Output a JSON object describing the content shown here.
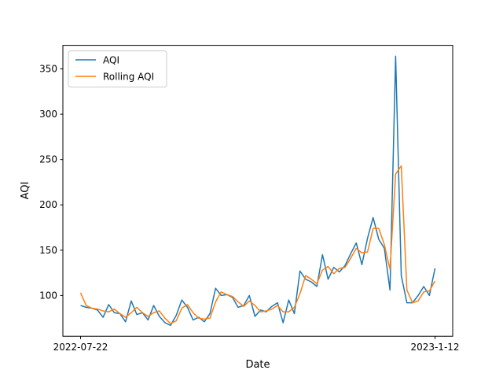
{
  "chart_data": {
    "type": "line",
    "xlabel": "Date",
    "ylabel": "AQI",
    "x_tick_labels": [
      "2022-07-22",
      "2023-1-12"
    ],
    "ylim": [
      55,
      376
    ],
    "y_ticks": [
      100,
      150,
      200,
      250,
      300,
      350
    ],
    "legend_position": "upper-left",
    "grid": false,
    "x_index": [
      0,
      1,
      2,
      3,
      4,
      5,
      6,
      7,
      8,
      9,
      10,
      11,
      12,
      13,
      14,
      15,
      16,
      17,
      18,
      19,
      20,
      21,
      22,
      23,
      24,
      25,
      26,
      27,
      28,
      29,
      30,
      31,
      32,
      33,
      34,
      35,
      36,
      37,
      38,
      39,
      40,
      41,
      42,
      43,
      44,
      45,
      46,
      47,
      48,
      49,
      50,
      51,
      52,
      53,
      54,
      55,
      56,
      57,
      58,
      59,
      60,
      61,
      62,
      63
    ],
    "series": [
      {
        "name": "AQI",
        "color": "#1f77b4",
        "values": [
          89,
          87,
          86,
          84,
          76,
          90,
          81,
          80,
          71,
          94,
          79,
          81,
          73,
          89,
          77,
          70,
          67,
          78,
          95,
          87,
          73,
          76,
          71,
          80,
          108,
          100,
          101,
          98,
          87,
          89,
          100,
          77,
          84,
          82,
          88,
          92,
          70,
          95,
          80,
          127,
          118,
          115,
          110,
          145,
          118,
          131,
          126,
          133,
          146,
          158,
          134,
          163,
          186,
          162,
          152,
          106,
          364,
          122,
          92,
          92,
          100,
          110,
          100,
          130
        ]
      },
      {
        "name": "Rolling AQI",
        "color": "#ff7f0e",
        "values": [
          103,
          89,
          86,
          85,
          83,
          82,
          85,
          80,
          76,
          81,
          87,
          81,
          77,
          81,
          83,
          75,
          69,
          72,
          86,
          90,
          81,
          75,
          74,
          75,
          93,
          104,
          101,
          99,
          93,
          88,
          94,
          89,
          82,
          83,
          85,
          89,
          82,
          82,
          87,
          102,
          122,
          118,
          113,
          128,
          132,
          124,
          130,
          131,
          141,
          152,
          147,
          148,
          174,
          174,
          156,
          129,
          234,
          243,
          106,
          92,
          94,
          104,
          105,
          116
        ]
      }
    ]
  }
}
